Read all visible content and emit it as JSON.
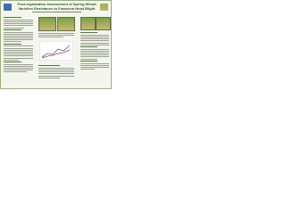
{
  "title": "Post-registration Assessment of Spring Wheat Varieties Resistance to Fusarium Head Blight"
}
